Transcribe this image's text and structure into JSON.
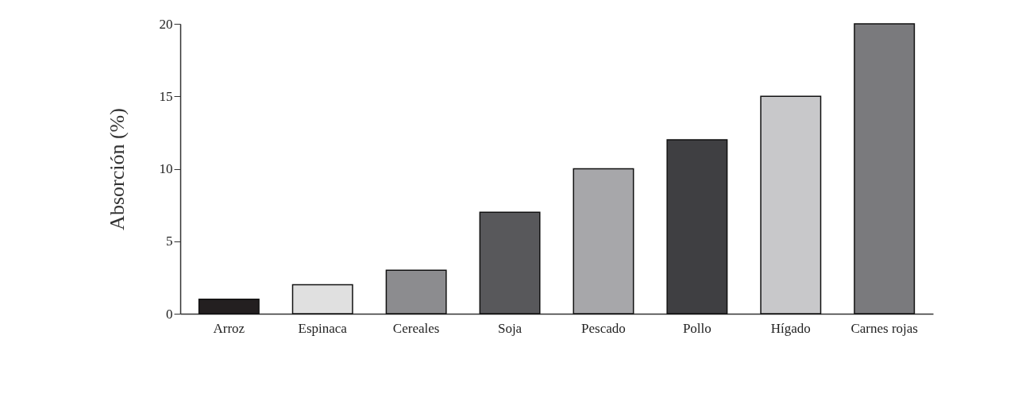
{
  "chart_data": {
    "type": "bar",
    "ylabel": "Absorción (%)",
    "categories": [
      "Arroz",
      "Espinaca",
      "Cereales",
      "Soja",
      "Pescado",
      "Pollo",
      "Hígado",
      "Carnes rojas"
    ],
    "values": [
      1,
      2,
      3,
      7,
      10,
      12,
      15,
      20
    ],
    "colors": [
      "#231f20",
      "#e0e0e0",
      "#8c8c8f",
      "#58585b",
      "#a7a7aa",
      "#3f3f42",
      "#c8c8ca",
      "#7a7a7d"
    ],
    "ylim": [
      0,
      20
    ],
    "yticks": [
      0,
      5,
      10,
      15,
      20
    ],
    "grid": false
  }
}
